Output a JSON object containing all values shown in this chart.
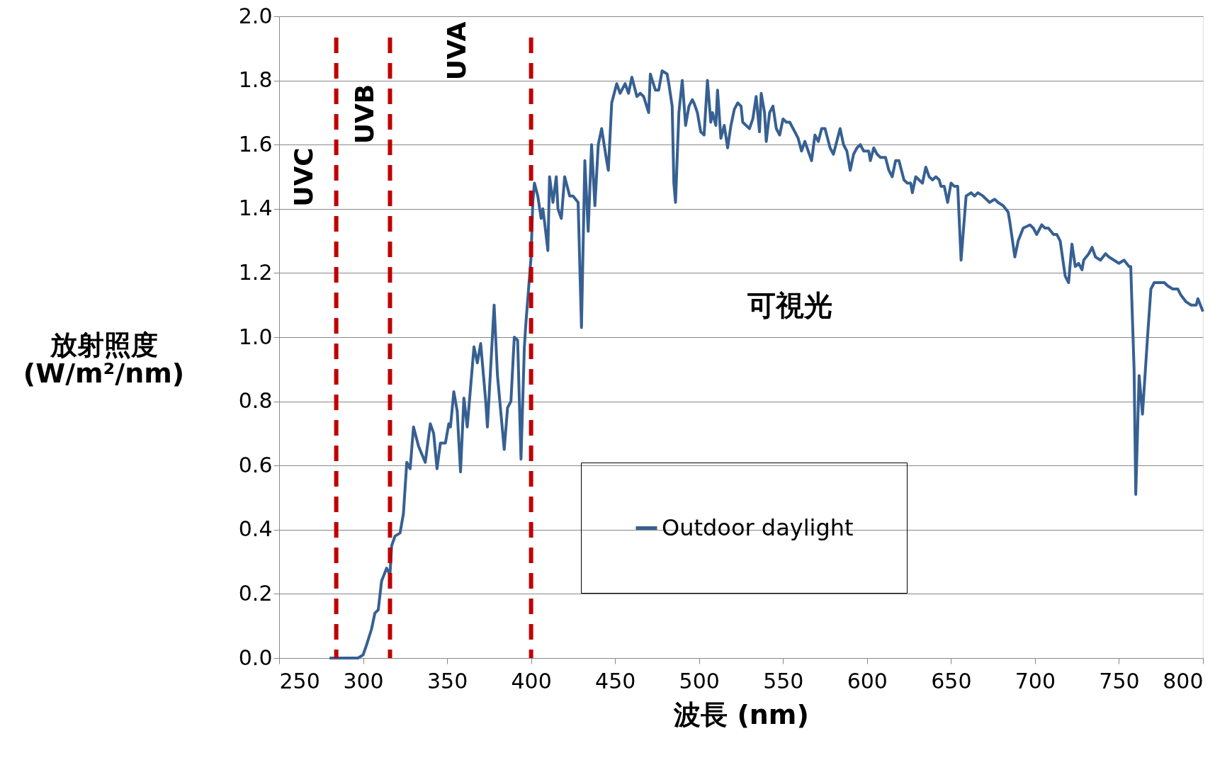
{
  "chart_data": {
    "type": "line",
    "xlabel": "波長 (nm)",
    "ylabel": "放射照度\n(W/m²/nm)",
    "xlim": [
      250,
      800
    ],
    "xticks": [
      250,
      300,
      350,
      400,
      450,
      500,
      550,
      600,
      650,
      700,
      750,
      800
    ],
    "ylim": [
      0,
      2.0
    ],
    "yticks": [
      {
        "value": 0,
        "label": "0.0"
      },
      {
        "value": 0.2,
        "label": "0.2"
      },
      {
        "value": 0.4,
        "label": "0.4"
      },
      {
        "value": 0.6,
        "label": "0.6"
      },
      {
        "value": 0.8,
        "label": "0.8"
      },
      {
        "value": 1.0,
        "label": "1.0"
      },
      {
        "value": 1.2,
        "label": "1.2"
      },
      {
        "value": 1.4,
        "label": "1.4"
      },
      {
        "value": 1.6,
        "label": "1.6"
      },
      {
        "value": 1.8,
        "label": "1.8"
      },
      {
        "value": 2.0,
        "label": "2.0"
      }
    ],
    "grid": "y",
    "legend": "bottom right",
    "marker": "none",
    "line_style": "solid",
    "ref_lines": [
      {
        "axis": "x",
        "value": 284,
        "color": "#c00000",
        "line_style": "dashed"
      },
      {
        "axis": "x",
        "value": 316,
        "color": "#c00000",
        "line_style": "dashed"
      },
      {
        "axis": "x",
        "value": 400,
        "color": "#c00000",
        "line_style": "dashed"
      }
    ],
    "annotations": [
      "UVC",
      "UVB",
      "UVA",
      "可視光"
    ],
    "series": [
      {
        "name": "Outdoor daylight",
        "color": "#376092",
        "x": [
          280,
          297,
          300,
          302,
          305,
          307,
          309,
          311,
          314,
          315,
          316,
          317,
          319,
          322,
          324,
          326,
          328,
          330,
          333,
          337,
          340,
          342,
          344,
          346,
          349,
          351,
          352,
          354,
          356,
          358,
          360,
          362,
          366,
          368,
          370,
          373,
          374,
          378,
          380,
          384,
          386,
          388,
          390,
          392,
          394,
          396,
          397,
          400,
          401,
          402,
          404,
          406,
          407,
          408,
          410,
          411,
          413,
          415,
          416,
          418,
          420,
          422,
          423,
          425,
          428,
          430,
          432,
          434,
          436,
          438,
          440,
          442,
          445,
          446,
          448,
          451,
          453,
          456,
          458,
          460,
          463,
          465,
          467,
          470,
          471,
          474,
          476,
          478,
          481,
          482,
          484,
          485,
          486,
          488,
          490,
          492,
          494,
          496,
          497,
          499,
          501,
          503,
          505,
          507,
          508,
          510,
          511,
          513,
          515,
          517,
          519,
          521,
          523,
          525,
          526,
          528,
          530,
          532,
          534,
          536,
          537,
          539,
          540,
          542,
          544,
          546,
          548,
          550,
          552,
          554,
          556,
          559,
          561,
          563,
          565,
          567,
          569,
          571,
          573,
          575,
          578,
          580,
          583,
          584,
          586,
          588,
          590,
          592,
          594,
          596,
          598,
          601,
          602,
          604,
          606,
          608,
          611,
          613,
          615,
          617,
          619,
          622,
          624,
          626,
          627,
          629,
          631,
          633,
          635,
          637,
          639,
          641,
          643,
          644,
          646,
          648,
          650,
          652,
          654,
          656,
          659,
          662,
          664,
          666,
          669,
          671,
          673,
          676,
          678,
          681,
          684,
          685,
          688,
          690,
          693,
          697,
          699,
          701,
          704,
          706,
          708,
          711,
          713,
          715,
          718,
          720,
          722,
          724,
          726,
          728,
          729,
          732,
          734,
          736,
          739,
          742,
          744,
          747,
          750,
          753,
          756,
          757,
          759,
          760,
          762,
          764,
          767,
          769,
          771,
          774,
          777,
          779,
          782,
          785,
          787,
          790,
          793,
          796,
          797,
          800
        ],
        "values": [
          0,
          0,
          0.01,
          0.04,
          0.09,
          0.14,
          0.15,
          0.24,
          0.28,
          0.27,
          0.26,
          0.35,
          0.38,
          0.39,
          0.45,
          0.61,
          0.59,
          0.72,
          0.66,
          0.61,
          0.73,
          0.7,
          0.59,
          0.67,
          0.67,
          0.73,
          0.72,
          0.83,
          0.77,
          0.58,
          0.81,
          0.72,
          0.97,
          0.92,
          0.98,
          0.8,
          0.72,
          1.1,
          0.88,
          0.65,
          0.78,
          0.8,
          1.0,
          0.99,
          0.62,
          0.97,
          1.05,
          1.25,
          1.42,
          1.48,
          1.44,
          1.37,
          1.4,
          1.36,
          1.27,
          1.5,
          1.42,
          1.5,
          1.4,
          1.37,
          1.5,
          1.46,
          1.44,
          1.44,
          1.42,
          1.03,
          1.55,
          1.33,
          1.6,
          1.41,
          1.6,
          1.65,
          1.55,
          1.52,
          1.73,
          1.79,
          1.76,
          1.79,
          1.76,
          1.81,
          1.75,
          1.76,
          1.75,
          1.7,
          1.82,
          1.77,
          1.77,
          1.83,
          1.82,
          1.79,
          1.72,
          1.48,
          1.42,
          1.7,
          1.8,
          1.66,
          1.72,
          1.74,
          1.73,
          1.7,
          1.64,
          1.63,
          1.8,
          1.67,
          1.7,
          1.66,
          1.77,
          1.62,
          1.66,
          1.59,
          1.66,
          1.71,
          1.73,
          1.72,
          1.67,
          1.66,
          1.65,
          1.68,
          1.75,
          1.64,
          1.76,
          1.7,
          1.61,
          1.7,
          1.72,
          1.65,
          1.63,
          1.68,
          1.67,
          1.67,
          1.65,
          1.62,
          1.58,
          1.61,
          1.58,
          1.55,
          1.63,
          1.61,
          1.65,
          1.65,
          1.59,
          1.57,
          1.63,
          1.65,
          1.6,
          1.58,
          1.52,
          1.57,
          1.59,
          1.6,
          1.58,
          1.58,
          1.55,
          1.59,
          1.57,
          1.56,
          1.56,
          1.52,
          1.5,
          1.55,
          1.55,
          1.49,
          1.48,
          1.48,
          1.45,
          1.5,
          1.49,
          1.48,
          1.53,
          1.5,
          1.49,
          1.5,
          1.49,
          1.47,
          1.47,
          1.42,
          1.48,
          1.47,
          1.47,
          1.24,
          1.44,
          1.45,
          1.44,
          1.45,
          1.44,
          1.43,
          1.42,
          1.43,
          1.42,
          1.41,
          1.39,
          1.36,
          1.25,
          1.3,
          1.34,
          1.35,
          1.34,
          1.32,
          1.35,
          1.34,
          1.34,
          1.32,
          1.32,
          1.3,
          1.19,
          1.17,
          1.29,
          1.22,
          1.23,
          1.21,
          1.24,
          1.26,
          1.28,
          1.25,
          1.24,
          1.26,
          1.25,
          1.24,
          1.23,
          1.24,
          1.22,
          1.22,
          0.9,
          0.51,
          0.88,
          0.76,
          1.0,
          1.15,
          1.17,
          1.17,
          1.17,
          1.16,
          1.15,
          1.15,
          1.13,
          1.11,
          1.1,
          1.1,
          1.12,
          1.08
        ]
      }
    ]
  }
}
